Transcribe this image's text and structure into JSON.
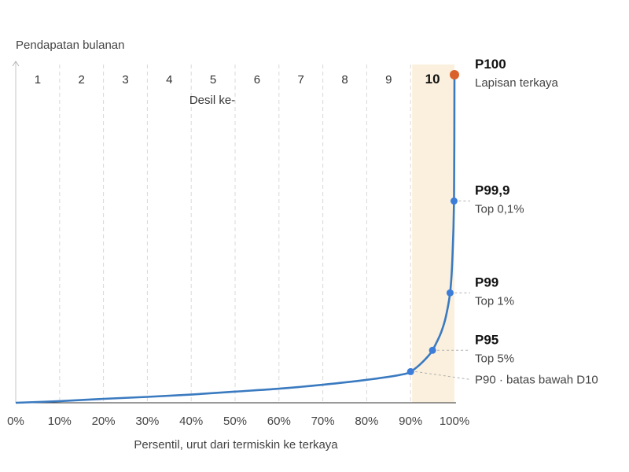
{
  "chart_data": {
    "type": "line",
    "ylabel": "Pendapatan bulanan",
    "xlabel": "Persentil, urut dari termiskin ke terkaya",
    "decile_axis_label": "Desil ke-",
    "x_ticks": [
      "0%",
      "10%",
      "20%",
      "30%",
      "40%",
      "50%",
      "60%",
      "70%",
      "80%",
      "90%",
      "100%"
    ],
    "deciles": [
      "1",
      "2",
      "3",
      "4",
      "5",
      "6",
      "7",
      "8",
      "9",
      "10"
    ],
    "highlighted_decile": "10",
    "xlim": [
      0,
      100
    ],
    "ylim": [
      0,
      100
    ],
    "y_ticks_shown": false,
    "series": [
      {
        "x": [
          0,
          10,
          20,
          30,
          40,
          50,
          60,
          70,
          80,
          88,
          90,
          92,
          94,
          95,
          96,
          97,
          98,
          99,
          99.5,
          99.9,
          100
        ],
        "y": [
          0,
          0.5,
          1.2,
          1.8,
          2.5,
          3.4,
          4.3,
          5.5,
          7.0,
          8.6,
          9.5,
          11.5,
          14.2,
          16.0,
          18.6,
          21.6,
          26.0,
          33.5,
          43.0,
          61.5,
          100
        ]
      }
    ],
    "annotations": [
      {
        "x": 90,
        "y": 9.5,
        "title": "",
        "subtitle": "P90 · batas bawah D10"
      },
      {
        "x": 95,
        "y": 16.0,
        "title": "P95",
        "subtitle": "Top 5%"
      },
      {
        "x": 99,
        "y": 33.5,
        "title": "P99",
        "subtitle": "Top 1%"
      },
      {
        "x": 99.9,
        "y": 61.5,
        "title": "P99,9",
        "subtitle": "Top 0,1%"
      },
      {
        "x": 100,
        "y": 100,
        "title": "P100",
        "subtitle": "Lapisan terkaya"
      }
    ],
    "colors": {
      "line": "#3a7ac0",
      "point": "#3b7dd8",
      "top_point": "#d9622b",
      "highlight_band": "#fbf0dd",
      "grid": "#d8d8d8"
    }
  }
}
